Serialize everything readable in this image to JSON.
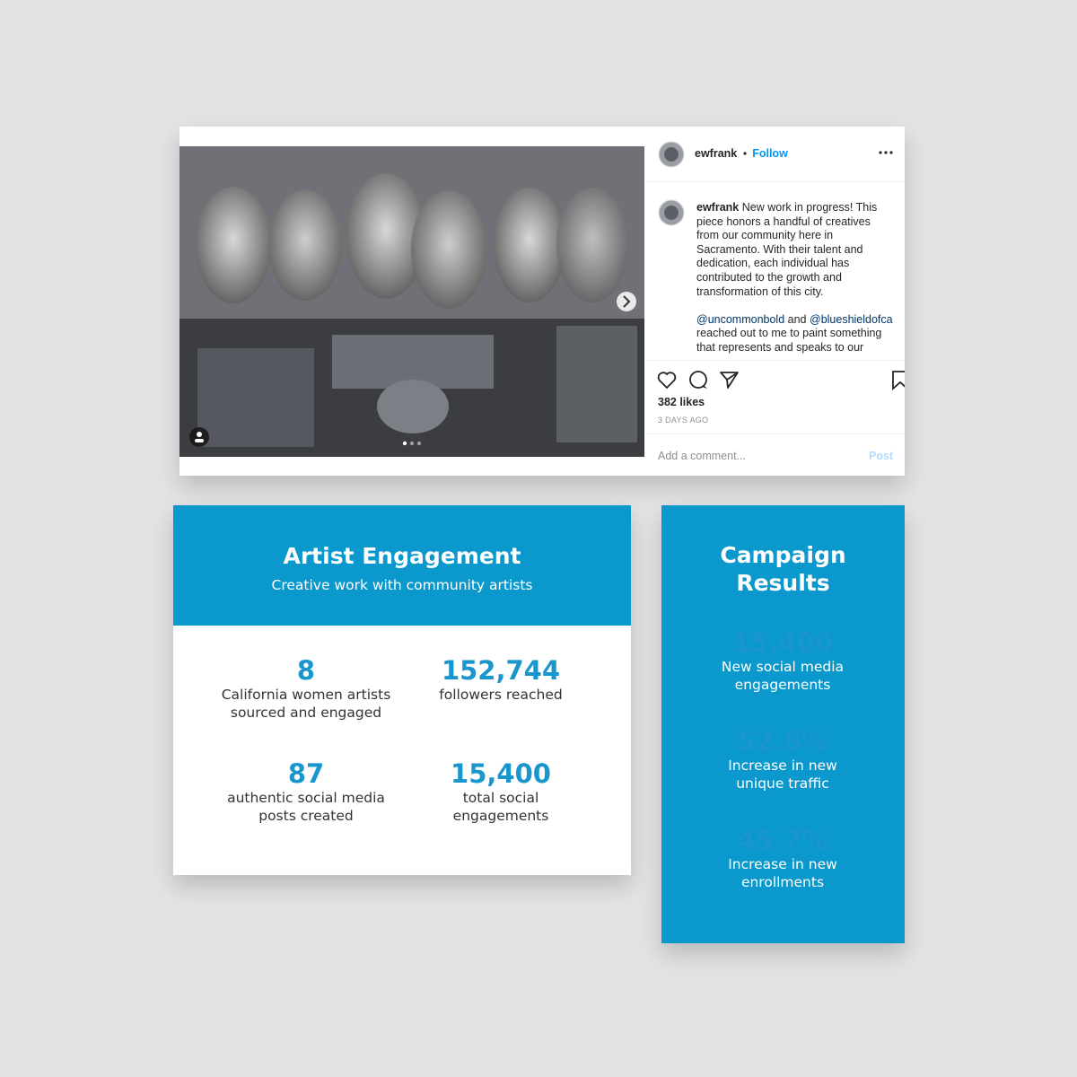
{
  "post": {
    "username": "ewfrank",
    "follow": "Follow",
    "caption_username": "ewfrank",
    "caption": "New work in progress! This piece honors a handful of creatives from our community here in Sacramento. With their talent and dedication, each individual has contributed to the growth and transformation of this city.",
    "mention_1": "@uncommonbold",
    "conjunction": "and",
    "mention_2": "@blueshieldofca",
    "caption_continued": "reached out to me to paint something that represents and speaks to our",
    "likes": "382 likes",
    "time": "3 DAYS AGO",
    "comment_placeholder": "Add a comment...",
    "post_button": "Post"
  },
  "artist_engagement": {
    "title": "Artist Engagement",
    "subtitle": "Creative work with community artists",
    "stats": [
      {
        "value": "8",
        "label": "California women artists sourced and engaged"
      },
      {
        "value": "152,744",
        "label": "followers reached"
      },
      {
        "value": "87",
        "label": "authentic social media posts created"
      },
      {
        "value": "15,400",
        "label": "total social engagements"
      }
    ]
  },
  "campaign_results": {
    "title": "Campaign Results",
    "stats": [
      {
        "value": "15,400",
        "label": "New social media engagements"
      },
      {
        "value": "52.8%",
        "label": "Increase in new unique traffic"
      },
      {
        "value": "45.7%",
        "label": "Increase in new enrollments"
      }
    ]
  }
}
